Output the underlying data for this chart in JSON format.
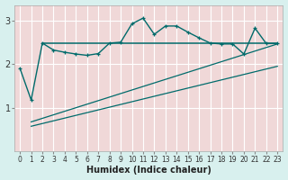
{
  "xlabel": "Humidex (Indice chaleur)",
  "ylabel": "",
  "fig_bg_color": "#d8f0ee",
  "plot_bg_color": "#f0d8d8",
  "grid_color": "#ffffff",
  "line_color": "#006b6b",
  "xlim": [
    -0.5,
    23.5
  ],
  "ylim": [
    0,
    3.35
  ],
  "yticks": [
    1,
    2,
    3
  ],
  "ytick_labels": [
    "1",
    "2",
    "3"
  ],
  "xticks": [
    0,
    1,
    2,
    3,
    4,
    5,
    6,
    7,
    8,
    9,
    10,
    11,
    12,
    13,
    14,
    15,
    16,
    17,
    18,
    19,
    20,
    21,
    22,
    23
  ],
  "line1_x": [
    0,
    1,
    2,
    3,
    4,
    5,
    6,
    7,
    8,
    9,
    10,
    11,
    12,
    13,
    14,
    15,
    16,
    17,
    18,
    19,
    20,
    21,
    22,
    23
  ],
  "line1_y": [
    1.9,
    1.18,
    2.48,
    2.32,
    2.27,
    2.23,
    2.2,
    2.24,
    2.48,
    2.5,
    2.92,
    3.05,
    2.68,
    2.87,
    2.87,
    2.73,
    2.6,
    2.48,
    2.46,
    2.46,
    2.23,
    2.82,
    2.47,
    2.47
  ],
  "line2_x": [
    2,
    18,
    23
  ],
  "line2_y": [
    2.48,
    2.48,
    2.48
  ],
  "line3_x": [
    1,
    23
  ],
  "line3_y": [
    0.68,
    2.46
  ],
  "line4_x": [
    1,
    23
  ],
  "line4_y": [
    0.58,
    1.95
  ]
}
